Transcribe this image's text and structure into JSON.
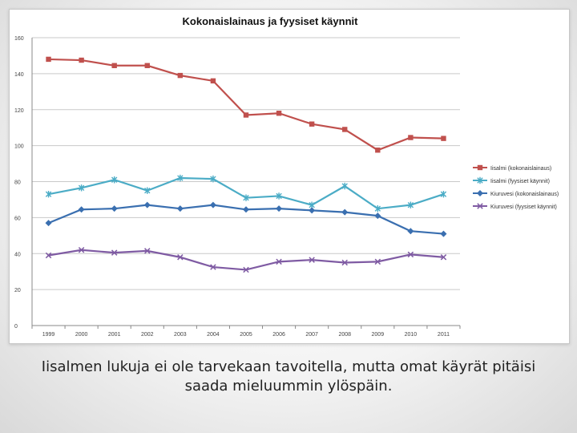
{
  "chart_data": {
    "type": "line",
    "title": "Kokonaislainaus ja fyysiset käynnit",
    "categories": [
      "1999",
      "2000",
      "2001",
      "2002",
      "2003",
      "2004",
      "2005",
      "2006",
      "2007",
      "2008",
      "2009",
      "2010",
      "2011"
    ],
    "ylim": [
      0,
      160
    ],
    "yticks": [
      0,
      20,
      40,
      60,
      80,
      100,
      120,
      140,
      160
    ],
    "grid": true,
    "legend_position": "right",
    "series": [
      {
        "name": "Iisalmi (kokonaislainaus)",
        "color": "#c0504d",
        "marker": "square",
        "values": [
          148,
          147.5,
          144.5,
          144.5,
          139,
          136,
          117,
          118,
          112,
          109,
          97.5,
          104.5,
          104
        ]
      },
      {
        "name": "Iisalmi (fyysiset käynnit)",
        "color": "#4bacc6",
        "marker": "star",
        "values": [
          73,
          76.5,
          81,
          75,
          82,
          81.5,
          71,
          72,
          67,
          77.5,
          65,
          67,
          73
        ]
      },
      {
        "name": "Kiuruvesi (kokonaislainaus)",
        "color": "#3a6fb0",
        "marker": "diamond",
        "values": [
          57,
          64.5,
          65,
          67,
          65,
          67,
          64.5,
          65,
          64,
          63,
          61,
          52.5,
          51
        ]
      },
      {
        "name": "Kiuruvesi (fyysiset käynnit)",
        "color": "#7f5ba3",
        "marker": "x",
        "values": [
          39,
          42,
          40.5,
          41.5,
          38,
          32.5,
          31,
          35.5,
          36.5,
          35,
          35.5,
          39.5,
          38
        ]
      }
    ]
  },
  "caption": {
    "line1": "Iisalmen lukuja ei ole tarvekaan tavoitella, mutta omat käyrät pitäisi",
    "line2": "saada mieluummin ylöspäin."
  }
}
